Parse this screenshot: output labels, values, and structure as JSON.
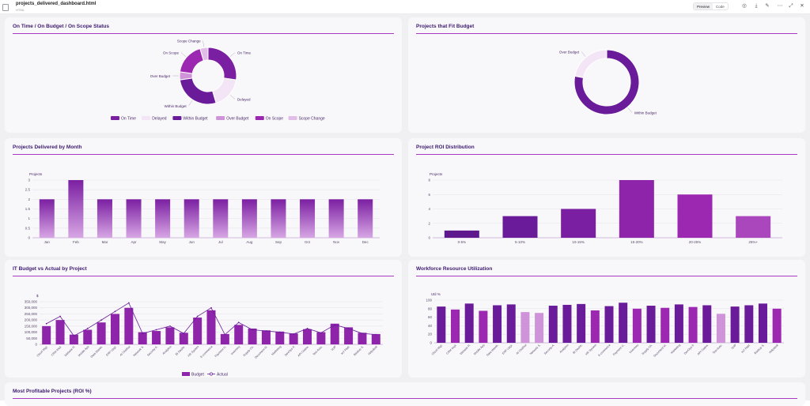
{
  "window": {
    "file_name": "projects_delivered_dashboard.html",
    "file_type": "HTML",
    "preview_label": "Preview",
    "code_label": "Code"
  },
  "icons": [
    "file-icon",
    "preview-icon",
    "code-icon",
    "globe-icon",
    "download-icon",
    "edit-icon",
    "more-icon",
    "maximize-icon",
    "close-icon"
  ],
  "colors": {
    "primary": "#6a1b9a",
    "dark": "#4a148c",
    "medium": "#9c27b0",
    "light": "#ce93d8",
    "pale": "#f3e5f5",
    "rule": "#a93ac0"
  },
  "cards": {
    "status": {
      "title": "On Time / On Budget / On Scope Status"
    },
    "budget_fit": {
      "title": "Projects that Fit Budget"
    },
    "monthly": {
      "title": "Projects Delivered by Month"
    },
    "roi": {
      "title": "Project ROI Distribution"
    },
    "budget_actual": {
      "title": "IT Budget vs Actual by Project"
    },
    "workforce": {
      "title": "Workforce Resource Utilization"
    },
    "profitable": {
      "title": "Most Profitable Projects (ROI %)"
    }
  },
  "chart_data": [
    {
      "id": "status",
      "type": "pie",
      "labels": [
        "On Time",
        "Delayed",
        "Within Budget",
        "Over Budget",
        "On Scope",
        "Scope Change"
      ],
      "values": [
        30,
        20,
        30,
        5,
        20,
        5
      ],
      "colors": [
        "#7b1fa2",
        "#f3e5f5",
        "#6a1b9a",
        "#ce93d8",
        "#9c27b0",
        "#e1bee7"
      ],
      "legend_position": "bottom"
    },
    {
      "id": "budget_fit",
      "type": "pie",
      "labels": [
        "Within Budget",
        "Over Budget"
      ],
      "values": [
        78,
        22
      ],
      "colors": [
        "#6a1b9a",
        "#f3e5f5"
      ],
      "legend_position": "none"
    },
    {
      "id": "monthly",
      "type": "bar",
      "categories": [
        "Jan",
        "Feb",
        "Mar",
        "Apr",
        "May",
        "Jun",
        "Jul",
        "Aug",
        "Sep",
        "Oct",
        "Nov",
        "Dec"
      ],
      "values": [
        2,
        3,
        2,
        2,
        2,
        2,
        2,
        2,
        2,
        2,
        2,
        2
      ],
      "ylabel": "Projects",
      "ylim": [
        0,
        3
      ],
      "yticks": [
        "0",
        "0.5",
        "1",
        "1.5",
        "2",
        "2.5",
        "3"
      ]
    },
    {
      "id": "roi",
      "type": "bar",
      "categories": [
        "0-5%",
        "5-10%",
        "10-15%",
        "15-20%",
        "20-25%",
        "25%+"
      ],
      "values": [
        1,
        3,
        4,
        8,
        6,
        3
      ],
      "ylabel": "Projects",
      "ylim": [
        0,
        8
      ],
      "yticks": [
        "0",
        "2",
        "4",
        "6",
        "8"
      ]
    },
    {
      "id": "budget_actual",
      "type": "bar",
      "categories": [
        "Cloud Migr.",
        "CRM Impl.",
        "Website R.",
        "Mobile App",
        "Data Wareh.",
        "ERP Upgr.",
        "AI Chatbot",
        "Network S.",
        "Security A.",
        "Analytics",
        "BI Dashb.",
        "HR System",
        "E-commerce",
        "Payment G.",
        "Inventory",
        "Supply Ch.",
        "Document M.",
        "Marketing",
        "DevOps P.",
        "API Gatew.",
        "Test Auto.",
        "VoIP",
        "IoT Platf.",
        "Backup S.",
        "Helpdesk"
      ],
      "series": [
        {
          "name": "Budget",
          "values": [
            150000,
            200000,
            80000,
            120000,
            180000,
            250000,
            300000,
            100000,
            110000,
            140000,
            95000,
            220000,
            280000,
            85000,
            160000,
            130000,
            115000,
            105000,
            90000,
            125000,
            100000,
            170000,
            140000,
            95000,
            85000
          ]
        },
        {
          "name": "Actual",
          "values": [
            170000,
            230000,
            70000,
            130000,
            200000,
            270000,
            340000,
            90000,
            120000,
            150000,
            90000,
            230000,
            300000,
            80000,
            180000,
            120000,
            110000,
            100000,
            85000,
            130000,
            95000,
            160000,
            130000,
            90000,
            80000
          ]
        }
      ],
      "ylabel": "$",
      "ylim": [
        0,
        350000
      ],
      "yticks": [
        "0",
        "50,000",
        "100,000",
        "150,000",
        "200,000",
        "250,000",
        "300,000",
        "350,000"
      ],
      "legend_position": "bottom"
    },
    {
      "id": "workforce",
      "type": "bar",
      "categories": [
        "Cloud Migr.",
        "CRM Impl.",
        "Website R.",
        "Mobile App",
        "Data Wareh.",
        "ERP Upgr.",
        "AI Chatbot",
        "Network S.",
        "Security A.",
        "Analytics",
        "BI Dashb.",
        "HR System",
        "E-commerce",
        "Payment G.",
        "Inventory",
        "Supply Ch.",
        "Document M.",
        "Marketing",
        "DevOps P.",
        "API Gatew.",
        "Test Auto.",
        "VoIP",
        "IoT Platf.",
        "Backup S.",
        "Helpdesk"
      ],
      "values": [
        85,
        78,
        92,
        75,
        88,
        90,
        72,
        70,
        87,
        89,
        91,
        76,
        86,
        94,
        80,
        87,
        82,
        90,
        84,
        88,
        68,
        85,
        88,
        92,
        80
      ],
      "ylabel": "Util %",
      "ylim": [
        0,
        100
      ],
      "yticks": [
        "0",
        "20",
        "40",
        "60",
        "80",
        "100"
      ]
    }
  ]
}
